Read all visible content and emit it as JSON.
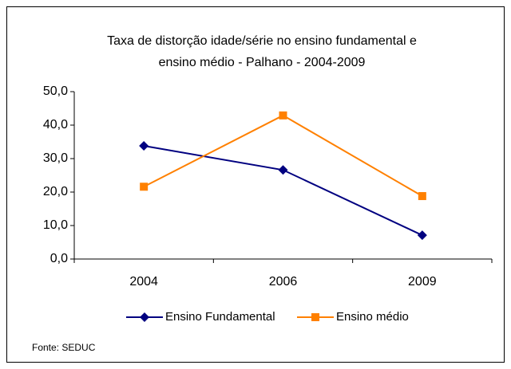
{
  "chart_data": {
    "type": "line",
    "title": [
      "Taxa de distorção idade/série no ensino fundamental e",
      "ensino médio - Palhano  -  2004-2009"
    ],
    "categories": [
      "2004",
      "2006",
      "2009"
    ],
    "series": [
      {
        "name": "Ensino Fundamental",
        "color": "#000080",
        "marker": "diamond",
        "values": [
          33.8,
          26.6,
          7.1
        ]
      },
      {
        "name": "Ensino médio",
        "color": "#ff8000",
        "marker": "square",
        "values": [
          21.6,
          42.9,
          18.8
        ]
      }
    ],
    "ylim": [
      0,
      50
    ],
    "yticks": [
      {
        "value": 0,
        "label": "0,0"
      },
      {
        "value": 10,
        "label": "10,0"
      },
      {
        "value": 20,
        "label": "20,0"
      },
      {
        "value": 30,
        "label": "30,0"
      },
      {
        "value": 40,
        "label": "40,0"
      },
      {
        "value": 50,
        "label": "50,0"
      }
    ],
    "grid": false,
    "legend": "bottom",
    "source": "Fonte: SEDUC"
  }
}
